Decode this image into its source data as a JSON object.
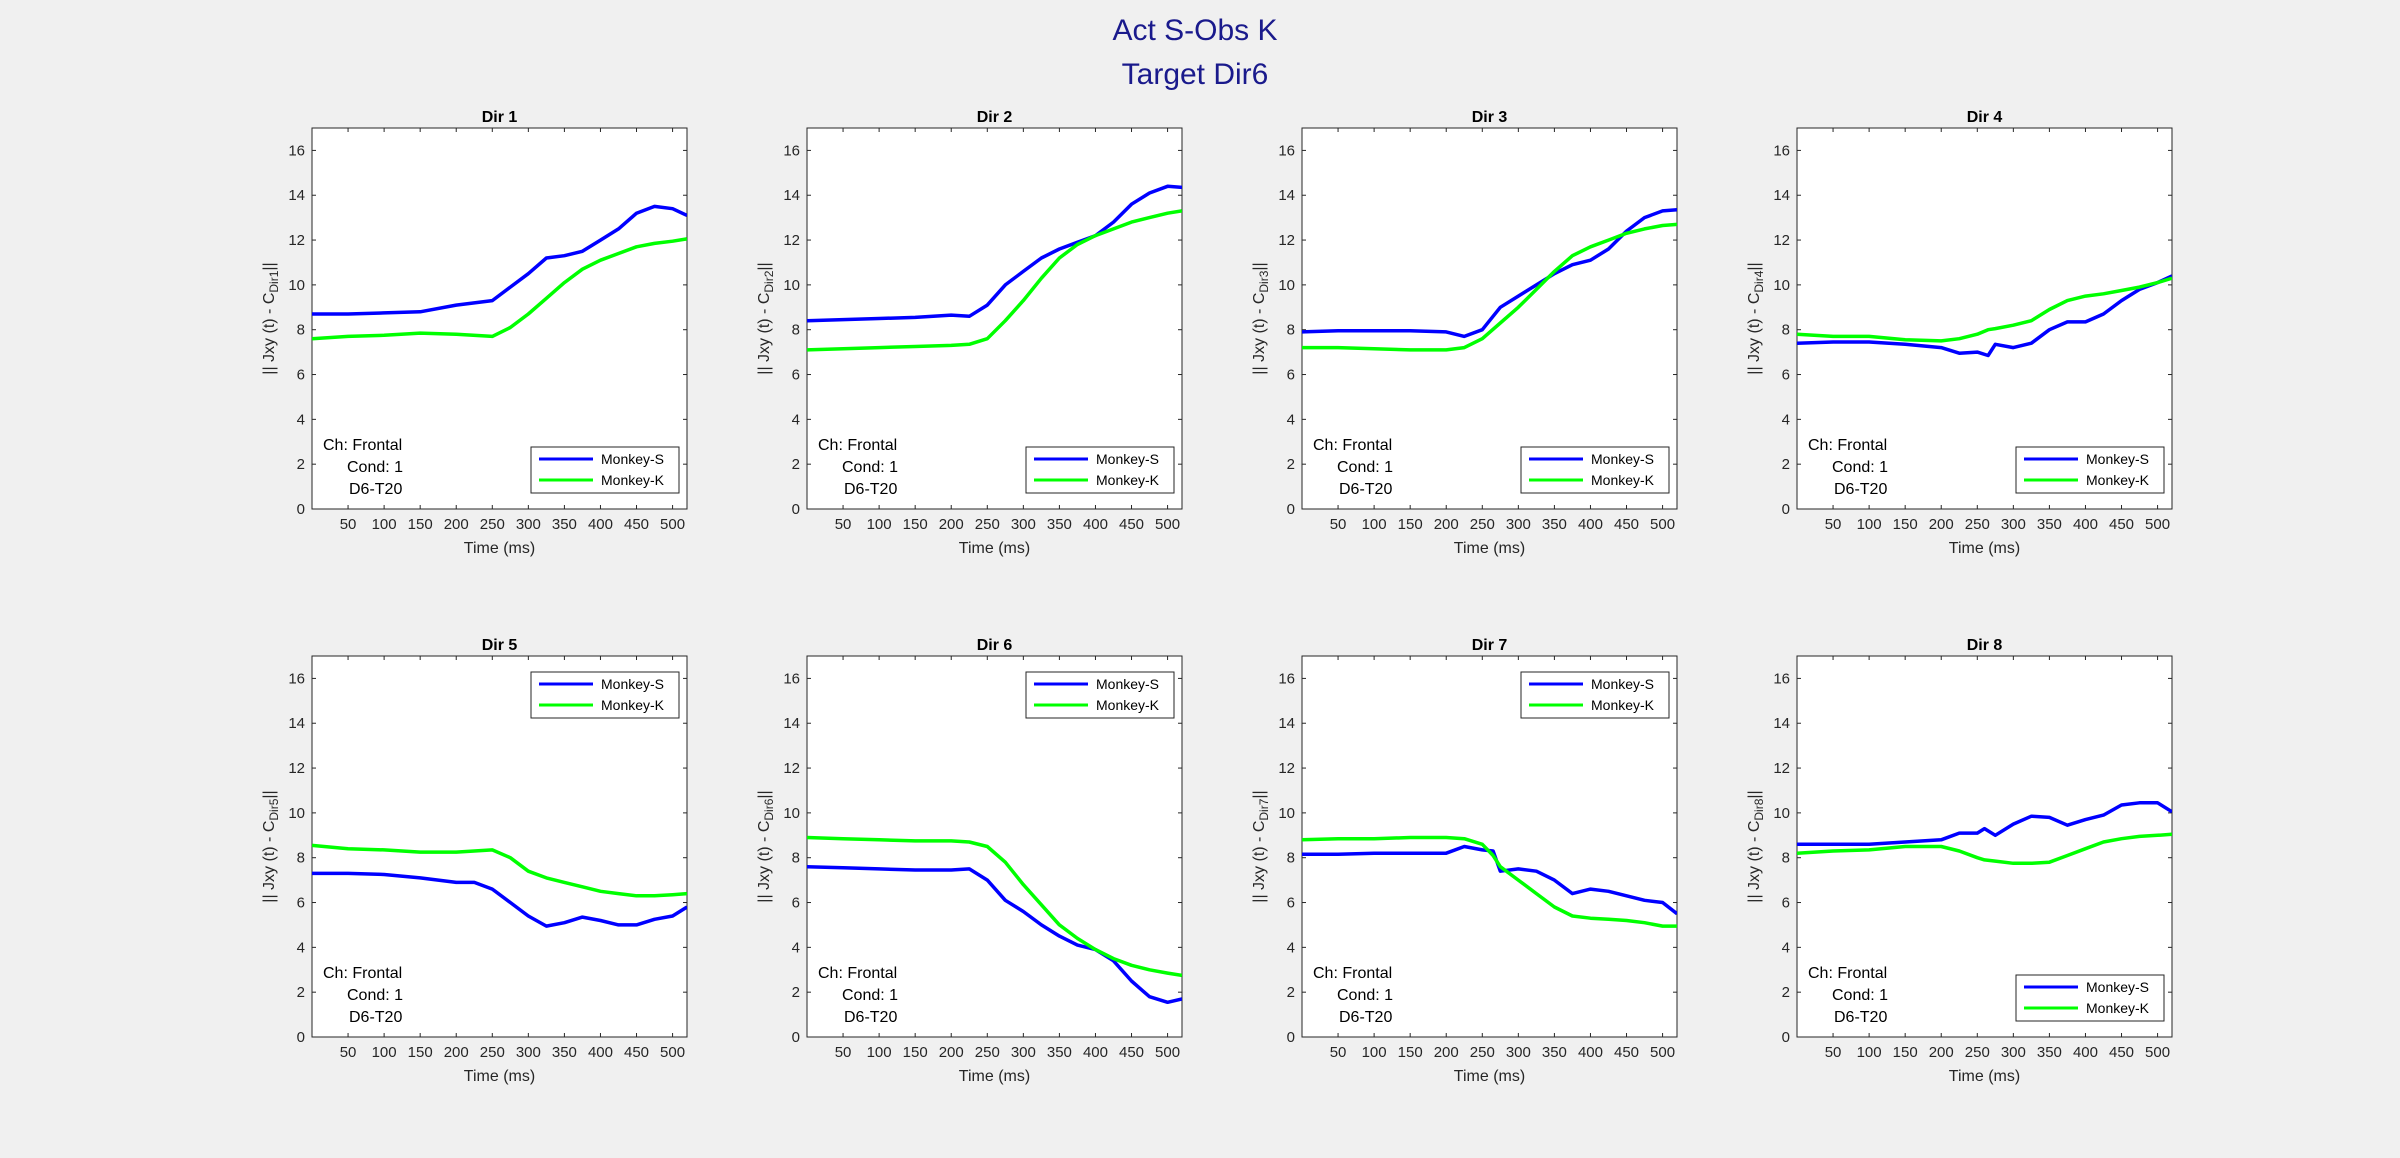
{
  "figure": {
    "title_line1": "Act S-Obs K",
    "title_line2": "Target Dir6",
    "title_color": "#1a1a8c"
  },
  "colors": {
    "monkey_s": "#0000ff",
    "monkey_k": "#00ff00",
    "axis": "#262626"
  },
  "chart_data": [
    {
      "type": "line",
      "title": "Dir 1",
      "xlabel": "Time (ms)",
      "ylabel_main": "|| Jxy (t) - C",
      "ylabel_sub": "Dir1",
      "ylabel_end": "||",
      "xlim": [
        0,
        520
      ],
      "ylim": [
        0,
        17
      ],
      "xticks": [
        50,
        100,
        150,
        200,
        250,
        300,
        350,
        400,
        450,
        500
      ],
      "yticks": [
        0,
        2,
        4,
        6,
        8,
        10,
        12,
        14,
        16
      ],
      "annotation": [
        "Ch: Frontal",
        "Cond: 1",
        "D6-T20"
      ],
      "legend_position": "bottom-right",
      "x": [
        0,
        50,
        100,
        150,
        200,
        250,
        275,
        300,
        325,
        350,
        375,
        400,
        425,
        450,
        475,
        500,
        520
      ],
      "series": [
        {
          "name": "Monkey-S",
          "values": [
            8.7,
            8.7,
            8.75,
            8.8,
            9.1,
            9.3,
            9.9,
            10.5,
            11.2,
            11.3,
            11.5,
            12.0,
            12.5,
            13.2,
            13.5,
            13.4,
            13.1
          ]
        },
        {
          "name": "Monkey-K",
          "values": [
            7.6,
            7.7,
            7.75,
            7.85,
            7.8,
            7.7,
            8.1,
            8.7,
            9.4,
            10.1,
            10.7,
            11.1,
            11.4,
            11.7,
            11.85,
            11.95,
            12.05
          ]
        }
      ]
    },
    {
      "type": "line",
      "title": "Dir 2",
      "xlabel": "Time (ms)",
      "ylabel_main": "|| Jxy (t) - C",
      "ylabel_sub": "Dir2",
      "ylabel_end": "||",
      "xlim": [
        0,
        520
      ],
      "ylim": [
        0,
        17
      ],
      "xticks": [
        50,
        100,
        150,
        200,
        250,
        300,
        350,
        400,
        450,
        500
      ],
      "yticks": [
        0,
        2,
        4,
        6,
        8,
        10,
        12,
        14,
        16
      ],
      "annotation": [
        "Ch: Frontal",
        "Cond: 1",
        "D6-T20"
      ],
      "legend_position": "bottom-right",
      "x": [
        0,
        50,
        100,
        150,
        200,
        225,
        250,
        275,
        300,
        325,
        350,
        375,
        400,
        425,
        450,
        475,
        500,
        520
      ],
      "series": [
        {
          "name": "Monkey-S",
          "values": [
            8.4,
            8.45,
            8.5,
            8.55,
            8.65,
            8.6,
            9.1,
            10.0,
            10.6,
            11.2,
            11.6,
            11.9,
            12.2,
            12.8,
            13.6,
            14.1,
            14.4,
            14.35
          ]
        },
        {
          "name": "Monkey-K",
          "values": [
            7.1,
            7.15,
            7.2,
            7.25,
            7.3,
            7.35,
            7.6,
            8.4,
            9.3,
            10.3,
            11.2,
            11.8,
            12.2,
            12.5,
            12.8,
            13.0,
            13.2,
            13.3
          ]
        }
      ]
    },
    {
      "type": "line",
      "title": "Dir 3",
      "xlabel": "Time (ms)",
      "ylabel_main": "|| Jxy (t) - C",
      "ylabel_sub": "Dir3",
      "ylabel_end": "||",
      "xlim": [
        0,
        520
      ],
      "ylim": [
        0,
        17
      ],
      "xticks": [
        50,
        100,
        150,
        200,
        250,
        300,
        350,
        400,
        450,
        500
      ],
      "yticks": [
        0,
        2,
        4,
        6,
        8,
        10,
        12,
        14,
        16
      ],
      "annotation": [
        "Ch: Frontal",
        "Cond: 1",
        "D6-T20"
      ],
      "legend_position": "bottom-right",
      "x": [
        0,
        50,
        100,
        150,
        200,
        225,
        250,
        275,
        300,
        325,
        350,
        375,
        400,
        425,
        450,
        475,
        500,
        520
      ],
      "series": [
        {
          "name": "Monkey-S",
          "values": [
            7.9,
            7.95,
            7.95,
            7.95,
            7.9,
            7.7,
            8.0,
            9.0,
            9.5,
            10.0,
            10.5,
            10.9,
            11.1,
            11.6,
            12.4,
            13.0,
            13.3,
            13.35
          ]
        },
        {
          "name": "Monkey-K",
          "values": [
            7.2,
            7.2,
            7.15,
            7.1,
            7.1,
            7.2,
            7.6,
            8.3,
            9.0,
            9.8,
            10.6,
            11.3,
            11.7,
            12.0,
            12.3,
            12.5,
            12.65,
            12.7
          ]
        }
      ]
    },
    {
      "type": "line",
      "title": "Dir 4",
      "xlabel": "Time (ms)",
      "ylabel_main": "|| Jxy (t) - C",
      "ylabel_sub": "Dir4",
      "ylabel_end": "||",
      "xlim": [
        0,
        520
      ],
      "ylim": [
        0,
        17
      ],
      "xticks": [
        50,
        100,
        150,
        200,
        250,
        300,
        350,
        400,
        450,
        500
      ],
      "yticks": [
        0,
        2,
        4,
        6,
        8,
        10,
        12,
        14,
        16
      ],
      "annotation": [
        "Ch: Frontal",
        "Cond: 1",
        "D6-T20"
      ],
      "legend_position": "bottom-right",
      "x": [
        0,
        50,
        100,
        150,
        200,
        225,
        250,
        265,
        275,
        300,
        325,
        350,
        375,
        400,
        425,
        450,
        475,
        500,
        520
      ],
      "series": [
        {
          "name": "Monkey-S",
          "values": [
            7.4,
            7.45,
            7.45,
            7.35,
            7.2,
            6.95,
            7.0,
            6.85,
            7.35,
            7.2,
            7.4,
            8.0,
            8.35,
            8.35,
            8.7,
            9.3,
            9.8,
            10.1,
            10.4
          ]
        },
        {
          "name": "Monkey-K",
          "values": [
            7.8,
            7.7,
            7.7,
            7.55,
            7.5,
            7.6,
            7.8,
            8.0,
            8.05,
            8.2,
            8.4,
            8.9,
            9.3,
            9.5,
            9.6,
            9.75,
            9.9,
            10.1,
            10.3
          ]
        }
      ]
    },
    {
      "type": "line",
      "title": "Dir 5",
      "xlabel": "Time (ms)",
      "ylabel_main": "|| Jxy (t) - C",
      "ylabel_sub": "Dir5",
      "ylabel_end": "||",
      "xlim": [
        0,
        520
      ],
      "ylim": [
        0,
        17
      ],
      "xticks": [
        50,
        100,
        150,
        200,
        250,
        300,
        350,
        400,
        450,
        500
      ],
      "yticks": [
        0,
        2,
        4,
        6,
        8,
        10,
        12,
        14,
        16
      ],
      "annotation": [
        "Ch: Frontal",
        "Cond: 1",
        "D6-T20"
      ],
      "legend_position": "top-right",
      "x": [
        0,
        50,
        100,
        150,
        200,
        225,
        250,
        275,
        300,
        325,
        350,
        375,
        400,
        425,
        450,
        475,
        500,
        520
      ],
      "series": [
        {
          "name": "Monkey-S",
          "values": [
            7.3,
            7.3,
            7.25,
            7.1,
            6.9,
            6.9,
            6.6,
            6.0,
            5.4,
            4.95,
            5.1,
            5.35,
            5.2,
            5.0,
            5.0,
            5.25,
            5.4,
            5.8
          ]
        },
        {
          "name": "Monkey-K",
          "values": [
            8.55,
            8.4,
            8.35,
            8.25,
            8.25,
            8.3,
            8.35,
            8.0,
            7.4,
            7.1,
            6.9,
            6.7,
            6.5,
            6.4,
            6.3,
            6.3,
            6.35,
            6.4
          ]
        }
      ]
    },
    {
      "type": "line",
      "title": "Dir 6",
      "xlabel": "Time (ms)",
      "ylabel_main": "|| Jxy (t) - C",
      "ylabel_sub": "Dir6",
      "ylabel_end": "||",
      "xlim": [
        0,
        520
      ],
      "ylim": [
        0,
        17
      ],
      "xticks": [
        50,
        100,
        150,
        200,
        250,
        300,
        350,
        400,
        450,
        500
      ],
      "yticks": [
        0,
        2,
        4,
        6,
        8,
        10,
        12,
        14,
        16
      ],
      "annotation": [
        "Ch: Frontal",
        "Cond: 1",
        "D6-T20"
      ],
      "legend_position": "top-right",
      "x": [
        0,
        50,
        100,
        150,
        200,
        225,
        250,
        275,
        300,
        325,
        350,
        375,
        400,
        425,
        450,
        475,
        500,
        520
      ],
      "series": [
        {
          "name": "Monkey-S",
          "values": [
            7.6,
            7.55,
            7.5,
            7.45,
            7.45,
            7.5,
            7.0,
            6.1,
            5.6,
            5.0,
            4.5,
            4.1,
            3.9,
            3.4,
            2.5,
            1.8,
            1.55,
            1.7
          ]
        },
        {
          "name": "Monkey-K",
          "values": [
            8.9,
            8.85,
            8.8,
            8.75,
            8.75,
            8.7,
            8.5,
            7.8,
            6.8,
            5.9,
            5.0,
            4.4,
            3.9,
            3.5,
            3.2,
            3.0,
            2.85,
            2.75
          ]
        }
      ]
    },
    {
      "type": "line",
      "title": "Dir 7",
      "xlabel": "Time (ms)",
      "ylabel_main": "|| Jxy (t) - C",
      "ylabel_sub": "Dir7",
      "ylabel_end": "||",
      "xlim": [
        0,
        520
      ],
      "ylim": [
        0,
        17
      ],
      "xticks": [
        50,
        100,
        150,
        200,
        250,
        300,
        350,
        400,
        450,
        500
      ],
      "yticks": [
        0,
        2,
        4,
        6,
        8,
        10,
        12,
        14,
        16
      ],
      "annotation": [
        "Ch: Frontal",
        "Cond: 1",
        "D6-T20"
      ],
      "legend_position": "top-right",
      "x": [
        0,
        50,
        100,
        150,
        200,
        225,
        250,
        265,
        275,
        300,
        325,
        350,
        375,
        400,
        425,
        450,
        475,
        500,
        520
      ],
      "series": [
        {
          "name": "Monkey-S",
          "values": [
            8.15,
            8.15,
            8.2,
            8.2,
            8.2,
            8.5,
            8.35,
            8.3,
            7.4,
            7.5,
            7.4,
            7.0,
            6.4,
            6.6,
            6.5,
            6.3,
            6.1,
            6.0,
            5.5
          ]
        },
        {
          "name": "Monkey-K",
          "values": [
            8.8,
            8.85,
            8.85,
            8.9,
            8.9,
            8.85,
            8.6,
            8.1,
            7.6,
            7.0,
            6.4,
            5.8,
            5.4,
            5.3,
            5.25,
            5.2,
            5.1,
            4.95,
            4.95
          ]
        }
      ]
    },
    {
      "type": "line",
      "title": "Dir 8",
      "xlabel": "Time (ms)",
      "ylabel_main": "|| Jxy (t) - C",
      "ylabel_sub": "Dir8",
      "ylabel_end": "||",
      "xlim": [
        0,
        520
      ],
      "ylim": [
        0,
        17
      ],
      "xticks": [
        50,
        100,
        150,
        200,
        250,
        300,
        350,
        400,
        450,
        500
      ],
      "yticks": [
        0,
        2,
        4,
        6,
        8,
        10,
        12,
        14,
        16
      ],
      "annotation": [
        "Ch: Frontal",
        "Cond: 1",
        "D6-T20"
      ],
      "legend_position": "bottom-right",
      "x": [
        0,
        50,
        100,
        150,
        200,
        225,
        250,
        260,
        275,
        300,
        325,
        350,
        375,
        400,
        425,
        450,
        475,
        500,
        520
      ],
      "series": [
        {
          "name": "Monkey-S",
          "values": [
            8.6,
            8.6,
            8.6,
            8.7,
            8.8,
            9.1,
            9.1,
            9.3,
            9.0,
            9.5,
            9.85,
            9.8,
            9.45,
            9.7,
            9.9,
            10.35,
            10.45,
            10.45,
            10.05
          ]
        },
        {
          "name": "Monkey-K",
          "values": [
            8.2,
            8.3,
            8.35,
            8.5,
            8.5,
            8.3,
            8.0,
            7.9,
            7.85,
            7.75,
            7.75,
            7.8,
            8.1,
            8.4,
            8.7,
            8.85,
            8.95,
            9.0,
            9.05
          ]
        }
      ]
    }
  ]
}
